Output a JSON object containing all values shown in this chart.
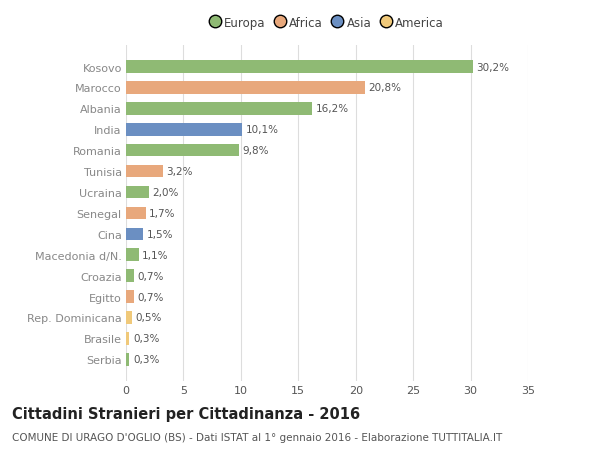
{
  "categories": [
    "Serbia",
    "Brasile",
    "Rep. Dominicana",
    "Egitto",
    "Croazia",
    "Macedonia d/N.",
    "Cina",
    "Senegal",
    "Ucraina",
    "Tunisia",
    "Romania",
    "India",
    "Albania",
    "Marocco",
    "Kosovo"
  ],
  "values": [
    0.3,
    0.3,
    0.5,
    0.7,
    0.7,
    1.1,
    1.5,
    1.7,
    2.0,
    3.2,
    9.8,
    10.1,
    16.2,
    20.8,
    30.2
  ],
  "labels": [
    "0,3%",
    "0,3%",
    "0,5%",
    "0,7%",
    "0,7%",
    "1,1%",
    "1,5%",
    "1,7%",
    "2,0%",
    "3,2%",
    "9,8%",
    "10,1%",
    "16,2%",
    "20,8%",
    "30,2%"
  ],
  "colors": [
    "#8fba74",
    "#f0c97a",
    "#f0c97a",
    "#e8a87c",
    "#8fba74",
    "#8fba74",
    "#6b8fc2",
    "#e8a87c",
    "#8fba74",
    "#e8a87c",
    "#8fba74",
    "#6b8fc2",
    "#8fba74",
    "#e8a87c",
    "#8fba74"
  ],
  "legend_labels": [
    "Europa",
    "Africa",
    "Asia",
    "America"
  ],
  "legend_colors": [
    "#8fba74",
    "#e8a87c",
    "#6b8fc2",
    "#f0c97a"
  ],
  "title": "Cittadini Stranieri per Cittadinanza - 2016",
  "subtitle": "COMUNE DI URAGO D'OGLIO (BS) - Dati ISTAT al 1° gennaio 2016 - Elaborazione TUTTITALIA.IT",
  "xlim": [
    0,
    35
  ],
  "xticks": [
    0,
    5,
    10,
    15,
    20,
    25,
    30,
    35
  ],
  "bg_color": "#ffffff",
  "grid_color": "#dddddd",
  "bar_height": 0.6,
  "title_fontsize": 10.5,
  "subtitle_fontsize": 7.5,
  "tick_fontsize": 8,
  "label_fontsize": 7.5
}
